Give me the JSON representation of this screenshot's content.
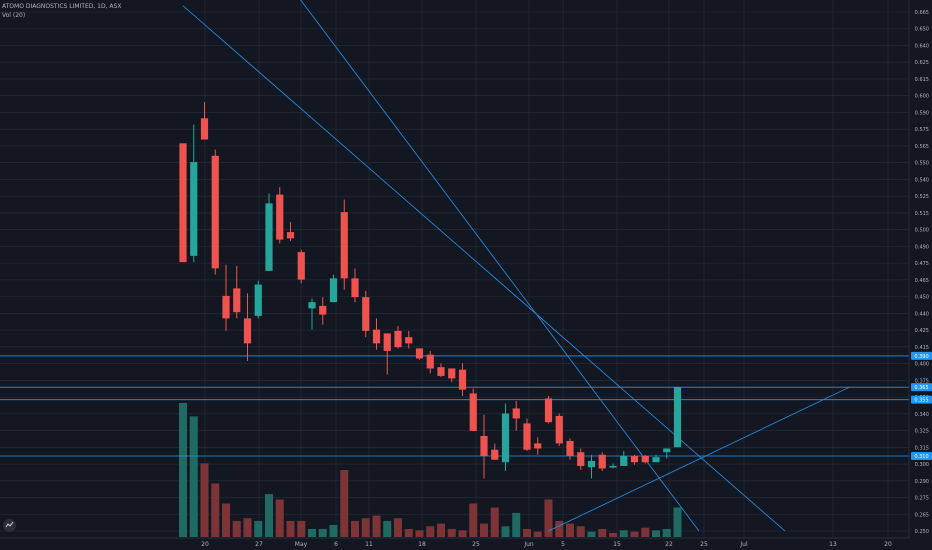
{
  "header": {
    "title": "ATOMO DIAGNOSTICS LIMITED, 1D, ASX",
    "volume_label": "Vol (20)"
  },
  "colors": {
    "background": "#131722",
    "up": "#26a69a",
    "down": "#ef5350",
    "trendline": "#2196f3",
    "grid": "#2a2e39"
  },
  "icons": [
    "logo-icon"
  ],
  "chart_data": {
    "type": "candlestick",
    "title": "ATOMO DIAGNOSTICS LIMITED, 1D, ASX",
    "ylim": [
      0.25,
      0.665
    ],
    "y_ticks": [
      "0.665",
      "0.650",
      "0.640",
      "0.625",
      "0.615",
      "0.600",
      "0.590",
      "0.575",
      "0.565",
      "0.550",
      "0.540",
      "0.525",
      "0.515",
      "0.500",
      "0.490",
      "0.475",
      "0.465",
      "0.450",
      "0.440",
      "0.425",
      "0.415",
      "0.400",
      "0.375",
      "0.350",
      "0.340",
      "0.325",
      "0.315",
      "0.300",
      "0.290",
      "0.275",
      "0.265",
      "0.250"
    ],
    "x_ticks": [
      "20",
      "27",
      "May",
      "6",
      "11",
      "18",
      "25",
      "Jun",
      "5",
      "15",
      "22",
      "25",
      "Jul",
      "13",
      "20"
    ],
    "price_labels": [
      "0.390",
      "0.365",
      "0.355",
      "0.310"
    ],
    "grid": true,
    "candles": [
      {
        "o": 0.56,
        "h": 0.56,
        "l": 0.465,
        "c": 0.465
      },
      {
        "o": 0.47,
        "h": 0.575,
        "l": 0.465,
        "c": 0.545
      },
      {
        "o": 0.58,
        "h": 0.593,
        "l": 0.565,
        "c": 0.563
      },
      {
        "o": 0.55,
        "h": 0.555,
        "l": 0.455,
        "c": 0.46
      },
      {
        "o": 0.438,
        "h": 0.463,
        "l": 0.41,
        "c": 0.42
      },
      {
        "o": 0.444,
        "h": 0.462,
        "l": 0.42,
        "c": 0.425
      },
      {
        "o": 0.42,
        "h": 0.44,
        "l": 0.386,
        "c": 0.4
      },
      {
        "o": 0.422,
        "h": 0.45,
        "l": 0.42,
        "c": 0.447
      },
      {
        "o": 0.458,
        "h": 0.52,
        "l": 0.458,
        "c": 0.512
      },
      {
        "o": 0.519,
        "h": 0.525,
        "l": 0.48,
        "c": 0.483
      },
      {
        "o": 0.489,
        "h": 0.497,
        "l": 0.482,
        "c": 0.484
      },
      {
        "o": 0.473,
        "h": 0.475,
        "l": 0.448,
        "c": 0.451
      },
      {
        "o": 0.428,
        "h": 0.436,
        "l": 0.411,
        "c": 0.433
      },
      {
        "o": 0.43,
        "h": 0.437,
        "l": 0.415,
        "c": 0.423
      },
      {
        "o": 0.433,
        "h": 0.455,
        "l": 0.433,
        "c": 0.452
      },
      {
        "o": 0.505,
        "h": 0.515,
        "l": 0.443,
        "c": 0.452
      },
      {
        "o": 0.452,
        "h": 0.46,
        "l": 0.433,
        "c": 0.437
      },
      {
        "o": 0.437,
        "h": 0.442,
        "l": 0.405,
        "c": 0.41
      },
      {
        "o": 0.411,
        "h": 0.42,
        "l": 0.395,
        "c": 0.4
      },
      {
        "o": 0.408,
        "h": 0.408,
        "l": 0.375,
        "c": 0.394
      },
      {
        "o": 0.41,
        "h": 0.414,
        "l": 0.396,
        "c": 0.397
      },
      {
        "o": 0.405,
        "h": 0.41,
        "l": 0.396,
        "c": 0.4
      },
      {
        "o": 0.396,
        "h": 0.396,
        "l": 0.387,
        "c": 0.388
      },
      {
        "o": 0.391,
        "h": 0.394,
        "l": 0.376,
        "c": 0.38
      },
      {
        "o": 0.381,
        "h": 0.384,
        "l": 0.373,
        "c": 0.374
      },
      {
        "o": 0.38,
        "h": 0.38,
        "l": 0.369,
        "c": 0.372
      },
      {
        "o": 0.379,
        "h": 0.384,
        "l": 0.358,
        "c": 0.363
      },
      {
        "o": 0.36,
        "h": 0.364,
        "l": 0.33,
        "c": 0.33
      },
      {
        "o": 0.326,
        "h": 0.343,
        "l": 0.292,
        "c": 0.31
      },
      {
        "o": 0.315,
        "h": 0.32,
        "l": 0.307,
        "c": 0.307
      },
      {
        "o": 0.305,
        "h": 0.352,
        "l": 0.298,
        "c": 0.344
      },
      {
        "o": 0.348,
        "h": 0.354,
        "l": 0.33,
        "c": 0.34
      },
      {
        "o": 0.336,
        "h": 0.34,
        "l": 0.314,
        "c": 0.315
      },
      {
        "o": 0.32,
        "h": 0.325,
        "l": 0.311,
        "c": 0.316
      },
      {
        "o": 0.356,
        "h": 0.358,
        "l": 0.336,
        "c": 0.337
      },
      {
        "o": 0.342,
        "h": 0.344,
        "l": 0.318,
        "c": 0.32
      },
      {
        "o": 0.322,
        "h": 0.324,
        "l": 0.307,
        "c": 0.31
      },
      {
        "o": 0.313,
        "h": 0.316,
        "l": 0.299,
        "c": 0.302
      },
      {
        "o": 0.301,
        "h": 0.311,
        "l": 0.292,
        "c": 0.306
      },
      {
        "o": 0.311,
        "h": 0.313,
        "l": 0.298,
        "c": 0.3
      },
      {
        "o": 0.301,
        "h": 0.304,
        "l": 0.3,
        "c": 0.302
      },
      {
        "o": 0.302,
        "h": 0.314,
        "l": 0.302,
        "c": 0.31
      },
      {
        "o": 0.31,
        "h": 0.311,
        "l": 0.303,
        "c": 0.305
      },
      {
        "o": 0.31,
        "h": 0.311,
        "l": 0.304,
        "c": 0.305
      },
      {
        "o": 0.305,
        "h": 0.311,
        "l": 0.305,
        "c": 0.309
      },
      {
        "o": 0.313,
        "h": 0.316,
        "l": 0.308,
        "c": 0.316
      },
      {
        "o": 0.317,
        "h": 0.365,
        "l": 0.317,
        "c": 0.365
      }
    ],
    "volume": [
      {
        "v": 100,
        "up": true
      },
      {
        "v": 90,
        "up": true
      },
      {
        "v": 55,
        "up": false
      },
      {
        "v": 40,
        "up": false
      },
      {
        "v": 25,
        "up": false
      },
      {
        "v": 12,
        "up": false
      },
      {
        "v": 14,
        "up": false
      },
      {
        "v": 12,
        "up": true
      },
      {
        "v": 32,
        "up": true
      },
      {
        "v": 28,
        "up": false
      },
      {
        "v": 12,
        "up": false
      },
      {
        "v": 12,
        "up": false
      },
      {
        "v": 6,
        "up": true
      },
      {
        "v": 6,
        "up": true
      },
      {
        "v": 9,
        "up": true
      },
      {
        "v": 50,
        "up": false
      },
      {
        "v": 12,
        "up": false
      },
      {
        "v": 14,
        "up": false
      },
      {
        "v": 16,
        "up": false
      },
      {
        "v": 12,
        "up": true
      },
      {
        "v": 14,
        "up": false
      },
      {
        "v": 6,
        "up": false
      },
      {
        "v": 5,
        "up": false
      },
      {
        "v": 8,
        "up": false
      },
      {
        "v": 10,
        "up": false
      },
      {
        "v": 6,
        "up": false
      },
      {
        "v": 5,
        "up": false
      },
      {
        "v": 25,
        "up": false
      },
      {
        "v": 10,
        "up": false
      },
      {
        "v": 22,
        "up": false
      },
      {
        "v": 8,
        "up": true
      },
      {
        "v": 18,
        "up": true
      },
      {
        "v": 6,
        "up": false
      },
      {
        "v": 4,
        "up": false
      },
      {
        "v": 28,
        "up": false
      },
      {
        "v": 12,
        "up": false
      },
      {
        "v": 10,
        "up": false
      },
      {
        "v": 8,
        "up": false
      },
      {
        "v": 4,
        "up": true
      },
      {
        "v": 6,
        "up": false
      },
      {
        "v": 3,
        "up": false
      },
      {
        "v": 5,
        "up": true
      },
      {
        "v": 4,
        "up": false
      },
      {
        "v": 7,
        "up": false
      },
      {
        "v": 5,
        "up": true
      },
      {
        "v": 6,
        "up": true
      },
      {
        "v": 22,
        "up": true
      }
    ],
    "trendlines": [
      {
        "from": [
          0,
          0.8
        ],
        "to": [
          48,
          0.25
        ]
      },
      {
        "from": [
          0,
          0.67
        ],
        "to": [
          56,
          0.25
        ]
      },
      {
        "from": [
          34,
          0.25
        ],
        "to": [
          62,
          0.365
        ]
      }
    ],
    "horizontal_lines": [
      0.39,
      0.365,
      0.355,
      0.31
    ]
  }
}
